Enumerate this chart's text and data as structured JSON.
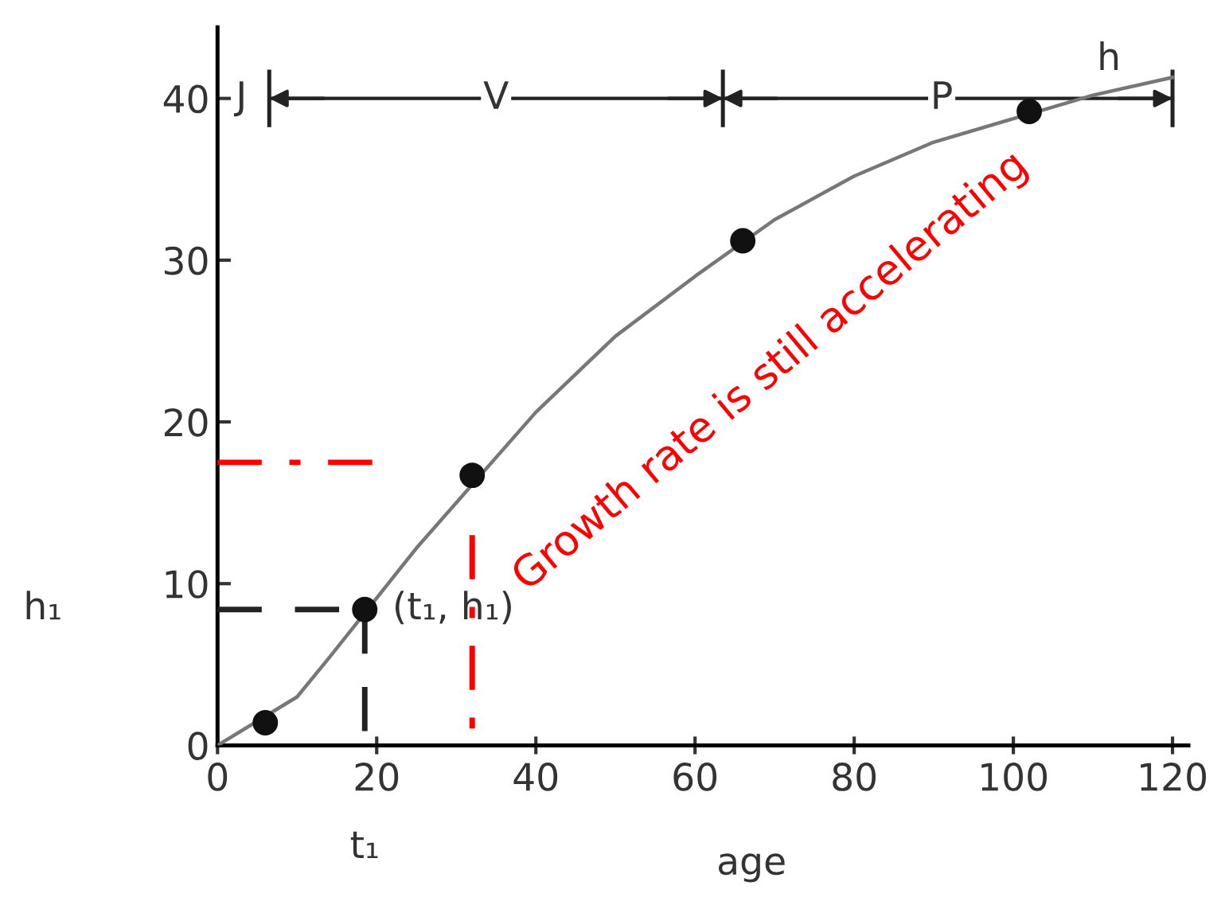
{
  "chart_data": {
    "type": "line",
    "xlabel": "age",
    "xlim": [
      0,
      122
    ],
    "ylim": [
      0,
      44.4
    ],
    "xticks": [
      0,
      20,
      40,
      60,
      80,
      100,
      120
    ],
    "yticks": [
      0,
      10,
      20,
      30,
      40
    ],
    "grid": false,
    "series": [
      {
        "color": "#777777",
        "marker": "none",
        "line_style": "solid",
        "x": [
          0,
          10,
          14,
          25,
          40,
          50,
          60,
          70,
          80,
          90,
          110,
          120
        ],
        "values": [
          0,
          3.0,
          5.4,
          12.2,
          20.6,
          25.3,
          29.0,
          32.5,
          35.2,
          37.3,
          40.2,
          41.3
        ]
      },
      {
        "type": "scatter",
        "color": "#111111",
        "marker": "circle",
        "x": [
          6,
          18.5,
          32,
          66,
          102
        ],
        "values": [
          1.4,
          8.4,
          16.7,
          31.2,
          39.2
        ]
      },
      {
        "color": "#222222",
        "marker": "none",
        "line_style": "dashed",
        "x": [
          0,
          18.5
        ],
        "values": [
          8.4,
          8.4
        ]
      },
      {
        "color": "#222222",
        "marker": "none",
        "line_style": "dashed",
        "x": [
          18.5,
          18.5
        ],
        "values": [
          8.4,
          0
        ]
      },
      {
        "color": "#ff0000",
        "marker": "none",
        "line_style": "dashdot",
        "x": [
          0,
          20
        ],
        "values": [
          17.5,
          17.5
        ]
      },
      {
        "color": "#ff0000",
        "marker": "none",
        "line_style": "dashdot",
        "x": [
          32,
          32
        ],
        "values": [
          13,
          0
        ]
      },
      {
        "color": "#222222",
        "line_style": "solid",
        "x": [
          6.5,
          63.5,
          120
        ],
        "values": [
          40,
          40,
          40
        ]
      }
    ],
    "annotations": [
      {
        "text": "J",
        "x": 3,
        "y": 40
      },
      {
        "text": "V",
        "x": 35,
        "y": 40
      },
      {
        "text": "P",
        "x": 91,
        "y": 40
      },
      {
        "text": "h",
        "x": 112,
        "y": 42.4
      },
      "(t₁, h₁)",
      "h₁",
      {
        "text": "t₁",
        "x": 18.5,
        "y": 0
      },
      "Growth rate is still accelerating"
    ]
  }
}
